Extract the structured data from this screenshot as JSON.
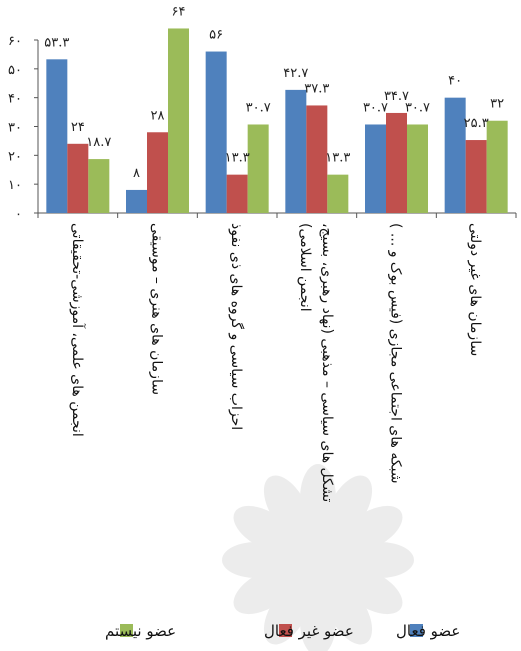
{
  "chart_data": {
    "type": "bar",
    "categories": [
      [
        "انجمن های علمی، آموزشی-تحقیقاتی"
      ],
      [
        "سازمان های هنری – موسیقی"
      ],
      [
        "احزاب سیاسی و گروه های ذی نفوذ"
      ],
      [
        "تشکل های سیاسی – مذهبی (نهاد رهبری، بسیج،",
        "انجمن اسلامی)"
      ],
      [
        "شبکه های اجتماعی مجازی (فیس بوک و ... )"
      ],
      [
        "سازمان های غیر دولتی"
      ]
    ],
    "series": [
      {
        "name": "عضو فعال",
        "color": "#4F81BD",
        "values": [
          53.3,
          8,
          56,
          42.7,
          30.7,
          40
        ],
        "labels": [
          "۵۳.۳",
          "۸",
          "۵۶",
          "۴۲.۷",
          "۳۰.۷",
          "۴۰"
        ]
      },
      {
        "name": "عضو غیر فعال",
        "color": "#C0504D",
        "values": [
          24,
          28,
          13.3,
          37.3,
          34.7,
          25.3
        ],
        "labels": [
          "۲۴",
          "۲۸",
          "۱۳.۳",
          "۳۷.۳",
          "۳۴.۷",
          "۲۵.۳"
        ]
      },
      {
        "name": "عضو نیستم",
        "color": "#9BBB59",
        "values": [
          18.7,
          64,
          30.7,
          13.3,
          30.7,
          32
        ],
        "labels": [
          "۱۸.۷",
          "۶۴",
          "۳۰.۷",
          "۱۳.۳",
          "۳۰.۷",
          "۳۲"
        ]
      }
    ],
    "ylim": [
      0,
      60
    ],
    "yticks": [
      {
        "value": 0,
        "label": "۰"
      },
      {
        "value": 10,
        "label": "۱۰"
      },
      {
        "value": 20,
        "label": "۲۰"
      },
      {
        "value": 30,
        "label": "۳۰"
      },
      {
        "value": 40,
        "label": "۴۰"
      },
      {
        "value": 50,
        "label": "۵۰"
      },
      {
        "value": 60,
        "label": "۶۰"
      }
    ],
    "grid": false,
    "legend_position": "bottom"
  }
}
